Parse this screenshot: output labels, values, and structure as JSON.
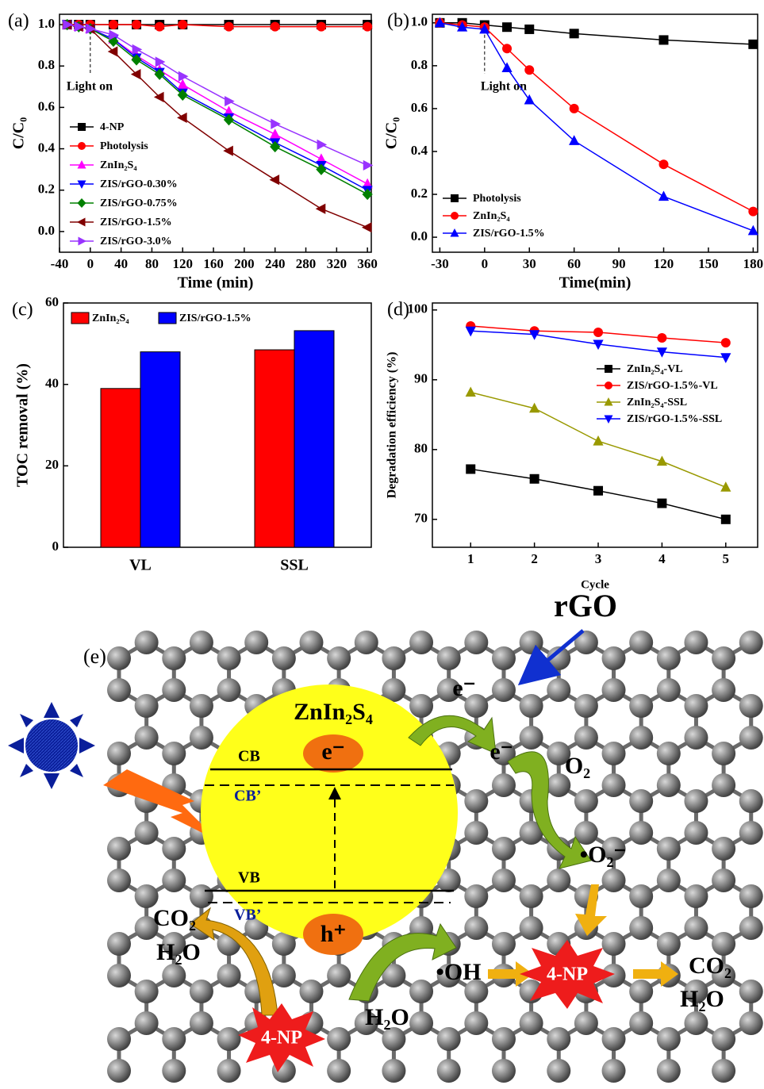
{
  "chart_data": [
    {
      "type": "line",
      "panel_label": "(a)",
      "x_label": "Time (min)",
      "y_label": "C/C₀",
      "annotation": "Light on",
      "x": [
        -30,
        -15,
        0,
        30,
        60,
        90,
        120,
        180,
        240,
        300,
        360
      ],
      "series": [
        {
          "name": "4-NP",
          "color": "#000000",
          "marker": "square",
          "values": [
            1.0,
            1.0,
            1.0,
            1.0,
            1.0,
            1.0,
            1.0,
            1.0,
            1.0,
            1.0,
            1.0
          ]
        },
        {
          "name": "Photolysis",
          "color": "#ff0000",
          "marker": "circle",
          "values": [
            1.0,
            1.0,
            1.0,
            1.0,
            1.0,
            0.99,
            1.0,
            0.99,
            0.99,
            0.99,
            0.99
          ]
        },
        {
          "name": "ZnIn₂S₄",
          "color": "#ff00ff",
          "marker": "tri-up",
          "values": [
            1.0,
            0.99,
            0.98,
            0.93,
            0.85,
            0.78,
            0.71,
            0.58,
            0.47,
            0.35,
            0.23
          ]
        },
        {
          "name": "ZIS/rGO-0.30%",
          "color": "#0000ff",
          "marker": "tri-down",
          "values": [
            1.0,
            0.99,
            0.98,
            0.93,
            0.84,
            0.77,
            0.67,
            0.55,
            0.43,
            0.32,
            0.2
          ]
        },
        {
          "name": "ZIS/rGO-0.75%",
          "color": "#008000",
          "marker": "diamond",
          "values": [
            1.0,
            0.99,
            0.98,
            0.92,
            0.83,
            0.76,
            0.66,
            0.54,
            0.41,
            0.3,
            0.18
          ]
        },
        {
          "name": "ZIS/rGO-1.5%",
          "color": "#800000",
          "marker": "tri-left",
          "values": [
            1.0,
            0.99,
            0.98,
            0.87,
            0.76,
            0.65,
            0.55,
            0.39,
            0.25,
            0.11,
            0.02
          ]
        },
        {
          "name": "ZIS/rGO-3.0%",
          "color": "#9933ff",
          "marker": "tri-right",
          "values": [
            1.0,
            0.99,
            0.98,
            0.95,
            0.88,
            0.82,
            0.75,
            0.63,
            0.52,
            0.42,
            0.32
          ]
        }
      ],
      "xlim": [
        -40,
        365
      ],
      "xticks": [
        -40,
        0,
        40,
        80,
        120,
        160,
        200,
        240,
        280,
        320,
        360
      ],
      "ylim": [
        -0.1,
        1.05
      ],
      "yticks": [
        {
          "value": 0,
          "label": "0.0"
        },
        0.2,
        0.4,
        0.6,
        0.8,
        {
          "value": 1,
          "label": "1.0"
        }
      ],
      "legend": "lower left"
    },
    {
      "type": "line",
      "panel_label": "(b)",
      "x_label": "Time(min)",
      "y_label": "C/C₀",
      "annotation": "Light on",
      "x": [
        -30,
        -15,
        0,
        15,
        30,
        60,
        120,
        180
      ],
      "series": [
        {
          "name": "Photolysis",
          "color": "#000000",
          "marker": "square",
          "values": [
            1.0,
            1.0,
            0.99,
            0.98,
            0.97,
            0.95,
            0.92,
            0.9
          ]
        },
        {
          "name": "ZnIn₂S₄",
          "color": "#ff0000",
          "marker": "circle",
          "values": [
            1.0,
            0.99,
            0.98,
            0.88,
            0.78,
            0.6,
            0.34,
            0.12
          ]
        },
        {
          "name": "ZIS/rGO-1.5%",
          "color": "#0000ff",
          "marker": "tri-up",
          "values": [
            1.0,
            0.98,
            0.97,
            0.79,
            0.64,
            0.45,
            0.19,
            0.03
          ]
        }
      ],
      "xlim": [
        -35,
        183
      ],
      "xticks": [
        -30,
        0,
        30,
        60,
        90,
        120,
        150,
        180
      ],
      "ylim": [
        -0.07,
        1.04
      ],
      "yticks": [
        {
          "value": 0,
          "label": "0.0"
        },
        0.2,
        0.4,
        0.6,
        0.8,
        {
          "value": 1,
          "label": "1.0"
        }
      ],
      "legend": "lower left"
    },
    {
      "type": "bar",
      "panel_label": "(c)",
      "y_label": "TOC removal (%)",
      "categories": [
        "VL",
        "SSL"
      ],
      "series": [
        {
          "name": "ZnIn₂S₄",
          "color": "#ff0000",
          "values": [
            39,
            48.5
          ]
        },
        {
          "name": "ZIS/rGO-1.5%",
          "color": "#0000ff",
          "values": [
            48,
            53.2
          ]
        }
      ],
      "ylim": [
        0,
        60
      ],
      "yticks": [
        0,
        20,
        40,
        60
      ],
      "legend": "upper left"
    },
    {
      "type": "line",
      "panel_label": "(d)",
      "x_label": "Cycle",
      "y_label": "Degradation efficiency (%)",
      "x": [
        1,
        2,
        3,
        4,
        5
      ],
      "series": [
        {
          "name": "ZnIn₂S₄-VL",
          "color": "#000000",
          "marker": "square",
          "values": [
            77.2,
            75.8,
            74.1,
            72.3,
            70
          ]
        },
        {
          "name": "ZIS/rGO-1.5%-VL",
          "color": "#ff0000",
          "marker": "circle",
          "values": [
            97.7,
            97,
            96.8,
            96,
            95.3
          ]
        },
        {
          "name": "ZnIn₂S₄-SSL",
          "color": "#999900",
          "marker": "tri-up",
          "values": [
            88.2,
            85.9,
            81.2,
            78.3,
            74.6
          ]
        },
        {
          "name": "ZIS/rGO-1.5%-SSL",
          "color": "#0000ff",
          "marker": "tri-down",
          "values": [
            97,
            96.5,
            95.1,
            94,
            93.2
          ]
        }
      ],
      "xlim": [
        0.4,
        5.5
      ],
      "xticks": [
        1,
        2,
        3,
        4,
        5
      ],
      "ylim": [
        66,
        101
      ],
      "yticks": [
        70,
        80,
        90,
        100
      ],
      "legend": "center right"
    }
  ],
  "diagram": {
    "panel_label": "(e)",
    "rgo": "rGO",
    "semiconductor": "ZnIn₂S₄",
    "cb": "CB",
    "cb_prime": "CB’",
    "vb": "VB",
    "vb_prime": "VB’",
    "electron": "e⁻",
    "hole": "h⁺",
    "oxygen": "O₂",
    "superoxide": "•O₂⁻",
    "hydroxyl": "•OH",
    "co2": "CO₂",
    "h2o": "H₂O",
    "pollutant": "4-NP"
  }
}
